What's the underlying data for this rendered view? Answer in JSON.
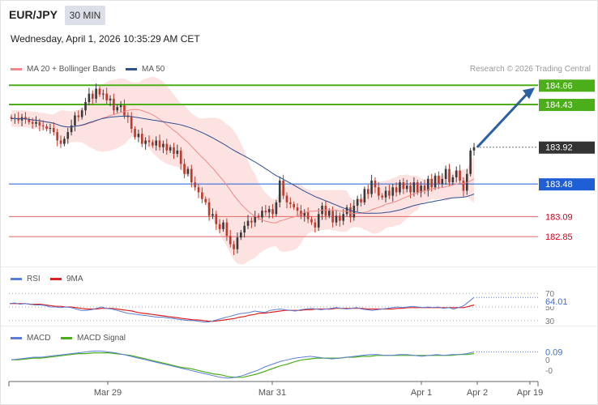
{
  "header": {
    "symbol": "EUR/JPY",
    "timeframe": "30 MIN",
    "datetime": "Wednesday, April 1, 2026 10:35:29 AM CET",
    "credit": "Research © 2026 Trading Central"
  },
  "legend": {
    "ma20": "MA 20 + Bollinger Bands",
    "ma50": "MA 50",
    "rsi": "RSI",
    "rsi_ma": "9MA",
    "macd": "MACD",
    "macd_signal": "MACD Signal"
  },
  "colors": {
    "bull": "#3a3a3a",
    "bear": "#c0392b",
    "ma20": "#f08a8a",
    "ma50": "#2f4f8f",
    "bb_fill": "#fde2e2",
    "resistance": "#4caf1a",
    "pivot": "#1f5fd6",
    "support": "#e06666",
    "last": "#333333",
    "arrow": "#2b5fa6",
    "rsi": "#5b7fd8",
    "rsi_ma": "#e02020",
    "macd": "#5b7fd8",
    "macd_signal": "#4caf1a"
  },
  "chart_data": [
    {
      "type": "candlestick",
      "x_ticks": [
        "Mar 29",
        "Mar 31",
        "Apr 1",
        "Apr 2",
        "Apr 19"
      ],
      "ylim": [
        182.6,
        184.75
      ],
      "levels": [
        {
          "label": "184.66",
          "value": 184.66,
          "kind": "resistance"
        },
        {
          "label": "184.43",
          "value": 184.43,
          "kind": "resistance"
        },
        {
          "label": "183.92",
          "value": 183.92,
          "kind": "last"
        },
        {
          "label": "183.48",
          "value": 183.48,
          "kind": "pivot"
        },
        {
          "label": "183.09",
          "value": 183.09,
          "kind": "support"
        },
        {
          "label": "182.85",
          "value": 182.85,
          "kind": "support"
        }
      ],
      "close": [
        184.26,
        184.27,
        184.24,
        184.28,
        184.25,
        184.22,
        184.2,
        184.22,
        184.18,
        184.17,
        184.14,
        184.15,
        184.1,
        184.0,
        183.96,
        184.02,
        184.1,
        184.18,
        184.3,
        184.28,
        184.36,
        184.46,
        184.56,
        184.5,
        184.62,
        184.55,
        184.56,
        184.48,
        184.5,
        184.36,
        184.4,
        184.42,
        184.3,
        184.28,
        184.14,
        184.04,
        184.08,
        183.96,
        184.0,
        183.98,
        183.94,
        184.0,
        183.92,
        183.96,
        183.88,
        183.92,
        183.84,
        183.88,
        183.72,
        183.6,
        183.66,
        183.5,
        183.44,
        183.38,
        183.3,
        183.26,
        183.1,
        183.12,
        183.0,
        182.94,
        183.02,
        182.86,
        182.76,
        182.7,
        182.84,
        182.9,
        182.98,
        183.04,
        183.02,
        183.1,
        183.08,
        183.16,
        183.14,
        183.18,
        183.12,
        183.26,
        183.52,
        183.34,
        183.26,
        183.24,
        183.2,
        183.16,
        183.1,
        183.14,
        183.06,
        183.02,
        182.96,
        183.12,
        183.22,
        183.1,
        183.16,
        183.02,
        183.1,
        183.04,
        183.12,
        183.2,
        183.08,
        183.22,
        183.3,
        183.26,
        183.42,
        183.36,
        183.52,
        183.44,
        183.34,
        183.32,
        183.4,
        183.34,
        183.44,
        183.38,
        183.5,
        183.42,
        183.46,
        183.38,
        183.5,
        183.38,
        183.46,
        183.4,
        183.54,
        183.44,
        183.58,
        183.48,
        183.54,
        183.66,
        183.5,
        183.56,
        183.64,
        183.52,
        183.4,
        183.6,
        183.88,
        183.92
      ]
    },
    {
      "type": "line",
      "title": "RSI",
      "yticks": [
        30,
        50,
        70
      ],
      "ylim": [
        25,
        75
      ],
      "last_label": "64.01",
      "series": [
        {
          "name": "RSI",
          "values": [
            55,
            56,
            54,
            55,
            54,
            53,
            53,
            52,
            50,
            50,
            49,
            50,
            49,
            47,
            45,
            45,
            46,
            48,
            50,
            48,
            47,
            45,
            43,
            41,
            40,
            39,
            38,
            37,
            36,
            35,
            35,
            34,
            33,
            32,
            31,
            30,
            30,
            29,
            28,
            28,
            30,
            32,
            34,
            36,
            38,
            40,
            41,
            42,
            44,
            43,
            42,
            45,
            46,
            47,
            46,
            45,
            44,
            46,
            47,
            48,
            47,
            46,
            47,
            48,
            49,
            48,
            47,
            48,
            49,
            47,
            46,
            45,
            46,
            47,
            48,
            49,
            50,
            49,
            50,
            51,
            50,
            49,
            50,
            49,
            50,
            48,
            49,
            47,
            49,
            52,
            58,
            64.01
          ]
        },
        {
          "name": "9MA",
          "values": [
            55,
            55,
            55,
            55,
            54,
            54,
            54,
            53,
            52,
            51,
            51,
            50,
            50,
            49,
            48,
            47,
            47,
            47,
            48,
            48,
            48,
            47,
            46,
            45,
            44,
            42,
            41,
            40,
            39,
            38,
            37,
            36,
            35,
            34,
            33,
            32,
            31,
            31,
            30,
            29,
            29,
            30,
            31,
            32,
            33,
            35,
            36,
            38,
            39,
            41,
            41,
            42,
            43,
            44,
            45,
            45,
            45,
            45,
            46,
            46,
            47,
            47,
            47,
            47,
            48,
            48,
            48,
            48,
            48,
            48,
            47,
            47,
            47,
            47,
            47,
            47,
            48,
            48,
            49,
            49,
            49,
            49,
            49,
            49,
            49,
            49,
            49,
            49,
            49,
            49,
            51,
            53
          ]
        }
      ]
    },
    {
      "type": "line",
      "title": "MACD",
      "yticks": [
        0
      ],
      "tick_labels": [
        "0",
        "-0"
      ],
      "ylim": [
        -0.22,
        0.15
      ],
      "last_label": "0.09",
      "series": [
        {
          "name": "MACD",
          "values": [
            0.0,
            0.01,
            0.02,
            0.03,
            0.03,
            0.04,
            0.05,
            0.06,
            0.07,
            0.08,
            0.09,
            0.1,
            0.1,
            0.09,
            0.08,
            0.06,
            0.04,
            0.02,
            0.0,
            -0.02,
            -0.04,
            -0.06,
            -0.08,
            -0.1,
            -0.12,
            -0.14,
            -0.16,
            -0.18,
            -0.2,
            -0.21,
            -0.2,
            -0.18,
            -0.15,
            -0.12,
            -0.08,
            -0.05,
            -0.02,
            0.0,
            0.02,
            0.03,
            0.04,
            0.03,
            0.02,
            0.01,
            0.02,
            0.03,
            0.04,
            0.05,
            0.06,
            0.06,
            0.05,
            0.05,
            0.06,
            0.06,
            0.05,
            0.04,
            0.05,
            0.06,
            0.05,
            0.06,
            0.06,
            0.07,
            0.09
          ]
        },
        {
          "name": "MACD Signal",
          "values": [
            0.0,
            0.0,
            0.01,
            0.02,
            0.02,
            0.03,
            0.04,
            0.05,
            0.06,
            0.07,
            0.07,
            0.08,
            0.08,
            0.08,
            0.07,
            0.06,
            0.05,
            0.03,
            0.01,
            -0.01,
            -0.03,
            -0.05,
            -0.07,
            -0.09,
            -0.1,
            -0.12,
            -0.14,
            -0.16,
            -0.17,
            -0.19,
            -0.2,
            -0.2,
            -0.18,
            -0.16,
            -0.13,
            -0.1,
            -0.07,
            -0.05,
            -0.02,
            0.0,
            0.01,
            0.02,
            0.02,
            0.02,
            0.02,
            0.03,
            0.03,
            0.04,
            0.04,
            0.05,
            0.05,
            0.05,
            0.05,
            0.05,
            0.05,
            0.05,
            0.05,
            0.05,
            0.05,
            0.05,
            0.06,
            0.06,
            0.07
          ]
        }
      ]
    }
  ]
}
